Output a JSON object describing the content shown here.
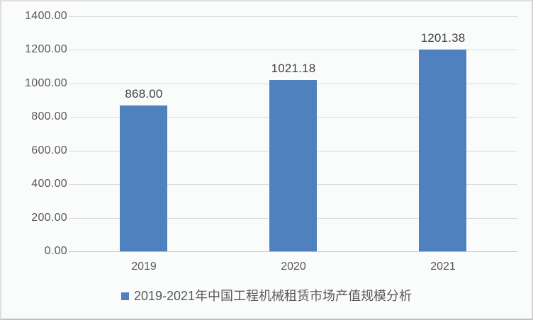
{
  "chart_data": {
    "type": "bar",
    "categories": [
      "2019",
      "2020",
      "2021"
    ],
    "values": [
      868.0,
      1021.18,
      1201.38
    ],
    "value_labels": [
      "868.00",
      "1021.18",
      "1201.38"
    ],
    "y_ticks": [
      0,
      200,
      400,
      600,
      800,
      1000,
      1200,
      1400
    ],
    "y_tick_labels": [
      "0.00",
      "200.00",
      "400.00",
      "600.00",
      "800.00",
      "1000.00",
      "1200.00",
      "1400.00"
    ],
    "ylim": [
      0,
      1400
    ],
    "title": "",
    "xlabel": "",
    "ylabel": "",
    "grid": true,
    "legend_position": "bottom",
    "legend": "2019-2021年中国工程机械租赁市场产值规模分析"
  },
  "colors": {
    "bar": "#4e81bd",
    "legend_marker": "#4e81bd",
    "gridline": "#d9d9d9",
    "axis_line": "#c6c6c6",
    "axis_text": "#595959",
    "value_text": "#404040",
    "background": "#fafbfb"
  }
}
